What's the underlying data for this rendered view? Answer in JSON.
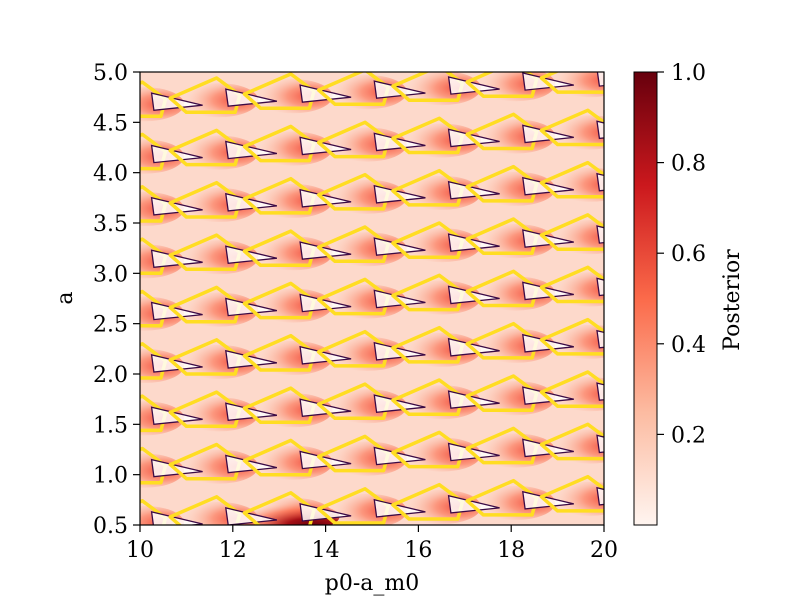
{
  "chart_data": {
    "type": "heatmap",
    "xlabel": "p0-a_m0",
    "ylabel": "a",
    "xlim": [
      10,
      20
    ],
    "ylim": [
      0.5,
      5.0
    ],
    "x_ticks": [
      "10",
      "12",
      "14",
      "16",
      "18",
      "20"
    ],
    "y_ticks": [
      "0.5",
      "1.0",
      "1.5",
      "2.0",
      "2.5",
      "3.0",
      "3.5",
      "4.0",
      "4.5",
      "5.0"
    ],
    "colorbar": {
      "label": "Posterior",
      "range": [
        0.0,
        1.0
      ],
      "ticks": [
        "0.2",
        "0.4",
        "0.6",
        "0.8",
        "1.0"
      ],
      "colormap": "Reds"
    },
    "contours": [
      {
        "level": "high",
        "color": "#ffdd22"
      },
      {
        "level": "low",
        "color": "#3b0a45"
      }
    ],
    "peak": {
      "x": 13.9,
      "y": 0.55,
      "value": 1.0
    },
    "lattice": {
      "slope_a_per_x": -0.3,
      "x_period": 1.6,
      "stripe_spacing_a": 0.52
    }
  },
  "colors": {
    "cmap_low": "#fff5f0",
    "cmap_high": "#67000d",
    "high_contour": "#ffdd22",
    "low_contour": "#3b0a45"
  }
}
